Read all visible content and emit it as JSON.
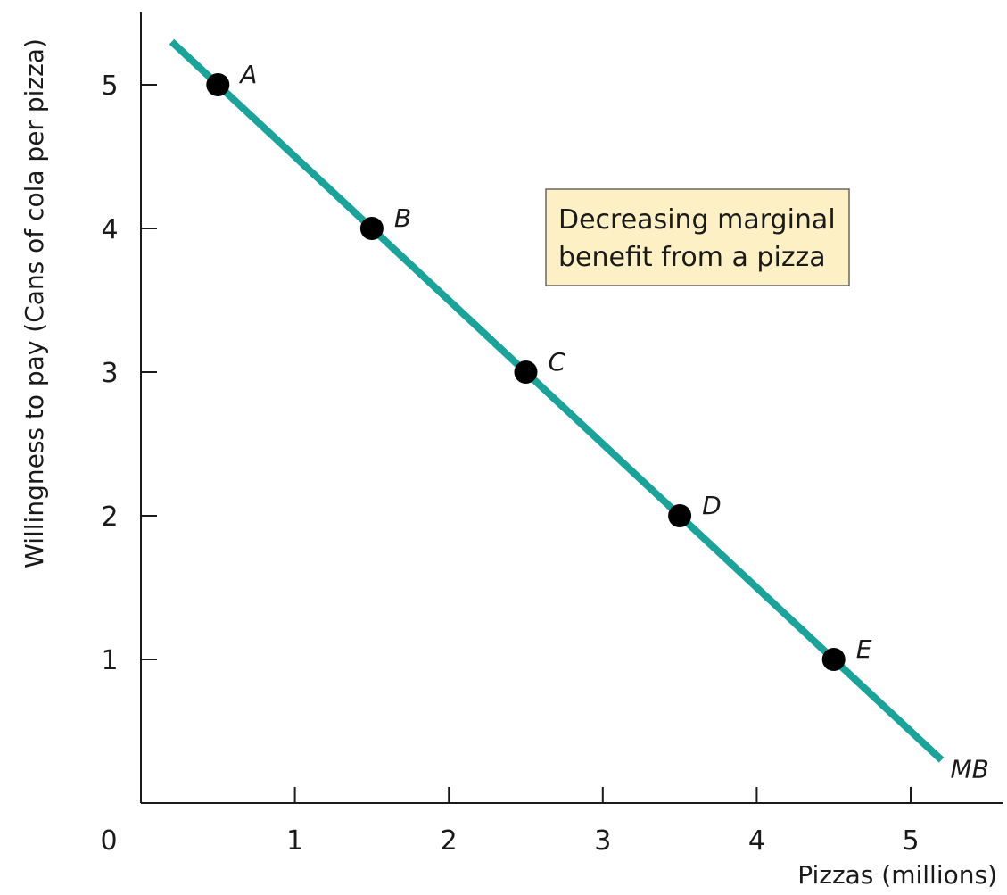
{
  "chart_data": {
    "type": "line",
    "title": "",
    "xlabel": "Pizzas (millions)",
    "ylabel": "Willingness to pay (Cans of cola per pizza)",
    "xlim": [
      0,
      5.5
    ],
    "ylim": [
      0,
      5.5
    ],
    "x_ticks": [
      0,
      1,
      2,
      3,
      4,
      5
    ],
    "y_ticks": [
      1,
      2,
      3,
      4,
      5
    ],
    "grid": false,
    "series": [
      {
        "name": "MB",
        "color": "#1aa39a",
        "line": {
          "x": [
            0.2,
            5.2
          ],
          "y": [
            5.3,
            0.3
          ]
        },
        "points": [
          {
            "label": "A",
            "x": 0.5,
            "y": 5
          },
          {
            "label": "B",
            "x": 1.5,
            "y": 4
          },
          {
            "label": "C",
            "x": 2.5,
            "y": 3
          },
          {
            "label": "D",
            "x": 3.5,
            "y": 2
          },
          {
            "label": "E",
            "x": 4.5,
            "y": 1
          }
        ]
      }
    ],
    "annotation": {
      "lines": [
        "Decreasing marginal",
        "benefit from a pizza"
      ],
      "fill": "#fdf0c4",
      "border": "#666666"
    }
  }
}
